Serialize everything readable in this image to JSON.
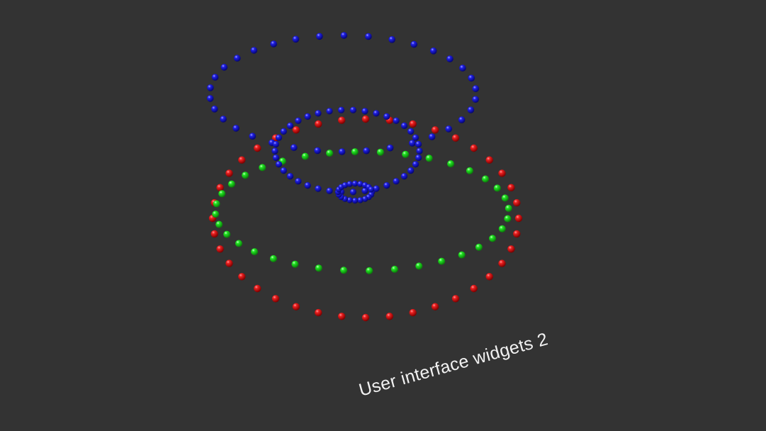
{
  "caption": "User interface widgets 2",
  "colors": {
    "background": "#333333",
    "red": "#e01010",
    "green": "#20e020",
    "blue": "#1818e0"
  },
  "scene_objects": [
    {
      "name": "red-ring",
      "color": "red"
    },
    {
      "name": "green-ring",
      "color": "green"
    },
    {
      "name": "blue-outer-ring",
      "color": "blue"
    },
    {
      "name": "blue-inner-ring",
      "color": "blue"
    },
    {
      "name": "blue-small-ring",
      "color": "blue"
    }
  ]
}
